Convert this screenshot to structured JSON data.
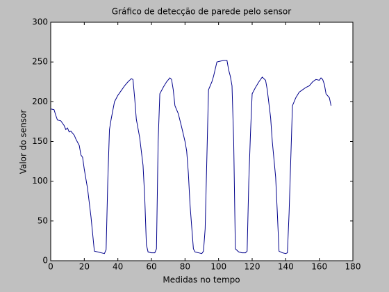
{
  "chart_data": {
    "type": "line",
    "title": "Gráfico de detecção de parede pelo sensor",
    "xlabel": "Medidas no tempo",
    "ylabel": "Valor do sensor",
    "xlim": [
      0,
      180
    ],
    "xticks": [
      0,
      20,
      40,
      60,
      80,
      100,
      120,
      140,
      160,
      180
    ],
    "ylim": [
      0,
      300
    ],
    "yticks": [
      0,
      50,
      100,
      150,
      200,
      250,
      300
    ],
    "series": [
      {
        "color": "#00008b",
        "x": [
          0,
          2,
          3,
          4,
          6,
          8,
          9,
          10,
          11,
          12,
          14,
          15,
          17,
          18,
          19,
          20,
          22,
          24,
          26,
          28,
          30,
          32,
          33,
          34,
          35,
          36,
          38,
          40,
          42,
          44,
          46,
          48,
          49,
          50,
          51,
          53,
          55,
          56,
          57,
          58,
          60,
          62,
          63,
          64,
          65,
          67,
          69,
          71,
          72,
          73,
          74,
          76,
          78,
          80,
          81,
          82,
          83,
          85,
          86,
          88,
          90,
          91,
          92,
          94,
          96,
          97,
          99,
          101,
          103,
          105,
          106,
          107,
          108,
          109,
          110,
          112,
          114,
          116,
          117,
          118,
          119,
          120,
          122,
          124,
          126,
          128,
          129,
          131,
          132,
          134,
          135,
          136,
          138,
          140,
          141,
          142,
          144,
          146,
          148,
          150,
          152,
          154,
          156,
          158,
          160,
          161,
          162,
          163,
          164,
          166,
          167
        ],
        "values": [
          191,
          190,
          183,
          177,
          176,
          170,
          165,
          167,
          162,
          163,
          158,
          153,
          145,
          133,
          130,
          115,
          90,
          55,
          12,
          11,
          10,
          9,
          14,
          100,
          165,
          178,
          200,
          208,
          214,
          220,
          225,
          229,
          228,
          205,
          178,
          155,
          120,
          80,
          20,
          11,
          10,
          10,
          15,
          150,
          210,
          218,
          225,
          230,
          228,
          215,
          195,
          185,
          168,
          150,
          138,
          110,
          70,
          15,
          11,
          10,
          9,
          12,
          40,
          215,
          225,
          232,
          250,
          251,
          252,
          252,
          240,
          232,
          220,
          150,
          15,
          11,
          10,
          10,
          12,
          100,
          160,
          210,
          218,
          225,
          231,
          227,
          215,
          180,
          150,
          105,
          60,
          12,
          10,
          9,
          10,
          60,
          195,
          205,
          212,
          215,
          218,
          220,
          225,
          228,
          227,
          230,
          228,
          222,
          210,
          205,
          195
        ]
      }
    ]
  }
}
